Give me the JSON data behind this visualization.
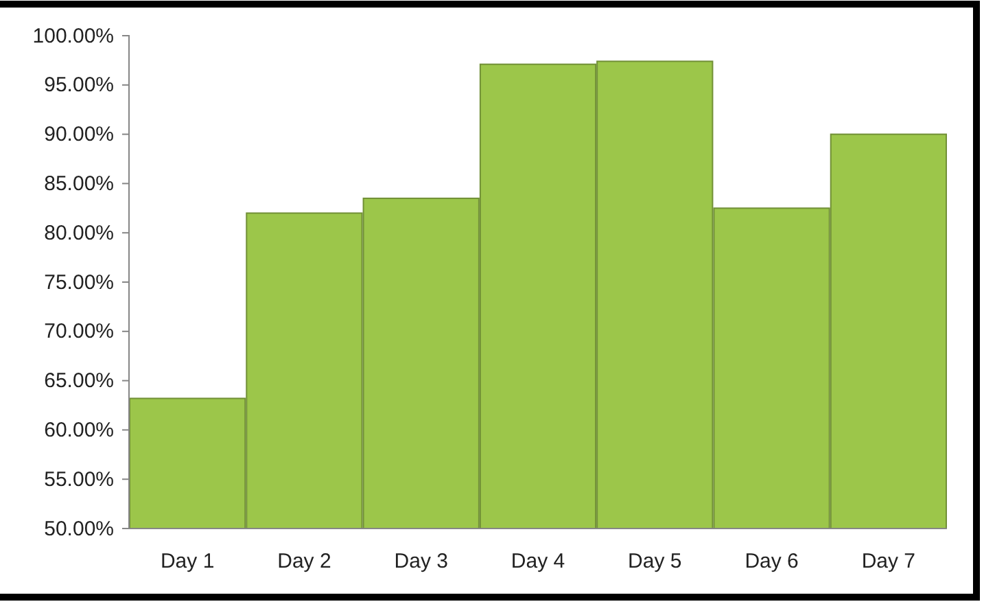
{
  "chart_data": {
    "type": "bar",
    "categories": [
      "Day 1",
      "Day 2",
      "Day 3",
      "Day 4",
      "Day 5",
      "Day 6",
      "Day 7"
    ],
    "values": [
      63.2,
      82.0,
      83.5,
      97.1,
      97.4,
      82.5,
      90.0
    ],
    "color": "#9cc64a",
    "ylim": [
      50,
      100
    ],
    "yticks": [
      {
        "value": 50,
        "label": "50.00%"
      },
      {
        "value": 55,
        "label": "55.00%"
      },
      {
        "value": 60,
        "label": "60.00%"
      },
      {
        "value": 65,
        "label": "65.00%"
      },
      {
        "value": 70,
        "label": "70.00%"
      },
      {
        "value": 75,
        "label": "75.00%"
      },
      {
        "value": 80,
        "label": "80.00%"
      },
      {
        "value": 85,
        "label": "85.00%"
      },
      {
        "value": 90,
        "label": "90.00%"
      },
      {
        "value": 95,
        "label": "95.00%"
      },
      {
        "value": 100,
        "label": "100.00%"
      }
    ],
    "grid": false,
    "legend": false
  }
}
